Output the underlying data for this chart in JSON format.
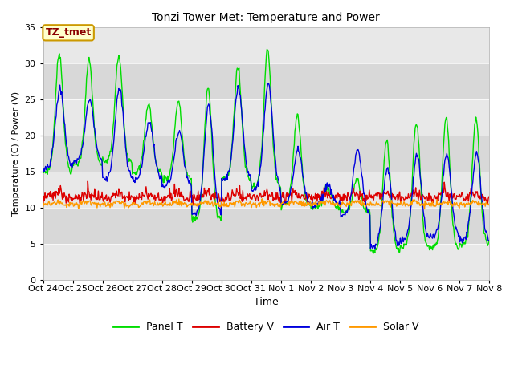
{
  "title": "Tonzi Tower Met: Temperature and Power",
  "xlabel": "Time",
  "ylabel": "Temperature (C) / Power (V)",
  "ylim": [
    0,
    35
  ],
  "yticks": [
    0,
    5,
    10,
    15,
    20,
    25,
    30,
    35
  ],
  "annotation_text": "TZ_tmet",
  "annotation_box_facecolor": "#ffffcc",
  "annotation_box_edgecolor": "#cc9900",
  "annotation_text_color": "#8b0000",
  "fig_facecolor": "#ffffff",
  "plot_facecolor": "#ffffff",
  "band_colors": [
    "#e8e8e8",
    "#d8d8d8"
  ],
  "x_tick_labels": [
    "Oct 24",
    "Oct 25",
    "Oct 26",
    "Oct 27",
    "Oct 28",
    "Oct 29",
    "Oct 30",
    "Oct 31",
    "Nov 1",
    "Nov 2",
    "Nov 3",
    "Nov 4",
    "Nov 5",
    "Nov 6",
    "Nov 7",
    "Nov 8"
  ],
  "colors": {
    "panel_t": "#00dd00",
    "battery_v": "#dd0000",
    "air_t": "#0000dd",
    "solar_v": "#ff9900"
  },
  "legend_labels": [
    "Panel T",
    "Battery V",
    "Air T",
    "Solar V"
  ],
  "panel_peaks": [
    31.5,
    30.5,
    31.0,
    24.5,
    24.8,
    26.7,
    29.5,
    32.0,
    22.8,
    13.0,
    14.0,
    19.5,
    22.0,
    22.5,
    22.5,
    20.5
  ],
  "panel_bases": [
    15.0,
    16.0,
    16.5,
    15.0,
    14.0,
    9.5,
    14.0,
    14.5,
    13.0,
    10.0,
    10.0,
    8.5,
    10.0,
    9.5,
    9.0,
    9.0
  ],
  "panel_mins": [
    15.0,
    16.0,
    16.5,
    15.0,
    14.0,
    8.5,
    14.0,
    13.0,
    10.5,
    10.0,
    9.5,
    4.0,
    4.5,
    4.5,
    5.0,
    9.0
  ],
  "air_peaks": [
    26.5,
    25.0,
    26.5,
    22.0,
    20.5,
    24.0,
    26.5,
    27.5,
    18.0,
    13.0,
    18.0,
    15.5,
    17.5,
    17.5,
    17.5,
    16.5
  ],
  "air_bases": [
    15.5,
    16.5,
    14.0,
    14.0,
    13.0,
    9.5,
    13.5,
    13.5,
    12.0,
    10.0,
    10.0,
    9.0,
    10.0,
    10.0,
    10.0,
    9.5
  ],
  "air_mins": [
    15.5,
    16.5,
    14.0,
    14.0,
    13.0,
    9.0,
    14.0,
    12.5,
    10.5,
    10.5,
    9.0,
    4.5,
    5.5,
    6.0,
    5.5,
    9.5
  ]
}
